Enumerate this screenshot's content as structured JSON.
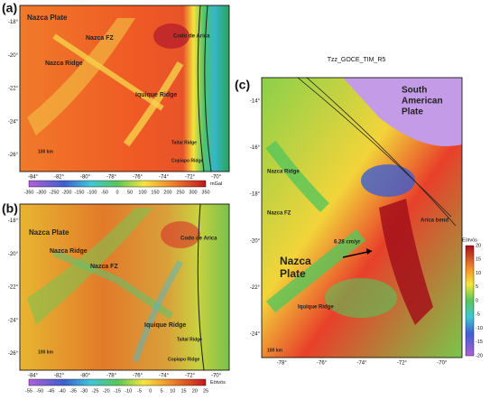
{
  "panels": [
    {
      "letter": "(a)",
      "lat_labels": [
        "-18°",
        "-20°",
        "-22°",
        "-24°",
        "-26°"
      ],
      "lon_labels": [
        "-84°",
        "-82°",
        "-80°",
        "-78°",
        "-76°",
        "-74°",
        "-72°",
        "-70°"
      ],
      "colorbar": {
        "ticks": [
          "-350",
          "-300",
          "-250",
          "-200",
          "-150",
          "-100",
          "-50",
          "0",
          "50",
          "100",
          "150",
          "200",
          "250",
          "300",
          "350"
        ],
        "unit": "mGal"
      },
      "annotations": [
        "Nazca Plate",
        "Nazca Ridge",
        "Nazca FZ",
        "Iquique Ridge",
        "Codo de Arica",
        "Taltal Ridge",
        "Copiapo Ridge",
        "100 km"
      ]
    },
    {
      "letter": "(b)",
      "lat_labels": [
        "-18°",
        "-20°",
        "-22°",
        "-24°",
        "-26°"
      ],
      "lon_labels": [
        "-84°",
        "-82°",
        "-80°",
        "-78°",
        "-76°",
        "-74°",
        "-72°",
        "-70°"
      ],
      "colorbar": {
        "ticks": [
          "-55",
          "-50",
          "-45",
          "-40",
          "-35",
          "-30",
          "-25",
          "-20",
          "-15",
          "-10",
          "-5",
          "0",
          "5",
          "10",
          "15",
          "20",
          "25"
        ],
        "unit": "Eötvös"
      },
      "annotations": [
        "Nazca Plate",
        "Nazca Ridge",
        "Nazca FZ",
        "Iquique Ridge",
        "Codo de Arica",
        "Taltal Ridge",
        "Copiapo Ridge",
        "100 km"
      ]
    },
    {
      "letter": "(c)",
      "title": "Tzz_GOCE_TIM_R5",
      "lat_labels": [
        "-14°",
        "-16°",
        "-18°",
        "-20°",
        "-22°",
        "-24°"
      ],
      "lon_labels": [
        "-78°",
        "-76°",
        "-74°",
        "-72°",
        "-70°"
      ],
      "colorbar": {
        "ticks": [
          "20",
          "15",
          "10",
          "5",
          "0",
          "-5",
          "-10",
          "-15",
          "-20"
        ],
        "unit": "Eötvös"
      },
      "annotations": [
        "South",
        "American",
        "Plate",
        "Nazca",
        "Plate",
        "Nazca Ridge",
        "Nazca FZ",
        "Iquique Ridge",
        "Arica bend",
        "6.28 cm/yr",
        "100 km"
      ]
    }
  ]
}
